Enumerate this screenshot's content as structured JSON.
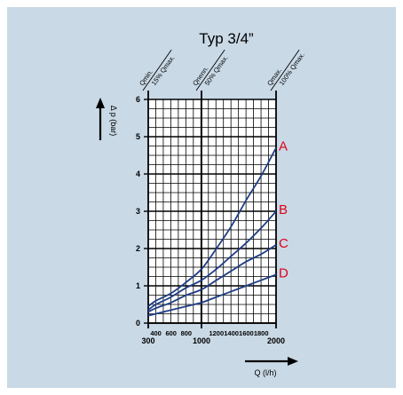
{
  "chart_data": {
    "type": "line",
    "title": "Typ 3/4”",
    "xlabel": "Q (l/h)",
    "ylabel": "Δ p (bar)",
    "xlim": [
      300,
      2000
    ],
    "ylim": [
      0,
      6
    ],
    "x_ticks_major": [
      "300",
      "1000",
      "2000"
    ],
    "x_ticks_minor": [
      "400",
      "600",
      "800",
      "1200",
      "1400",
      "1600",
      "1800"
    ],
    "y_ticks": [
      "0",
      "1",
      "2",
      "3",
      "4",
      "5",
      "6"
    ],
    "top_annotations": [
      {
        "line1": "Qmin.",
        "line2": "15% Qmax.",
        "x": 300
      },
      {
        "line1": "Qnenn.",
        "line2": "50% Qmax.",
        "x": 1000
      },
      {
        "line1": "Qmax.",
        "line2": "100% Qmax.",
        "x": 2000
      }
    ],
    "grid": true,
    "series": [
      {
        "name": "A",
        "x": [
          300,
          400,
          600,
          800,
          1000,
          1200,
          1400,
          1600,
          1800,
          2000
        ],
        "y": [
          0.45,
          0.6,
          0.8,
          1.1,
          1.45,
          2.0,
          2.6,
          3.3,
          3.95,
          4.7
        ]
      },
      {
        "name": "B",
        "x": [
          300,
          400,
          600,
          800,
          1000,
          1200,
          1400,
          1600,
          1800,
          2000
        ],
        "y": [
          0.35,
          0.5,
          0.7,
          0.95,
          1.15,
          1.45,
          1.8,
          2.15,
          2.55,
          3.0
        ]
      },
      {
        "name": "C",
        "x": [
          300,
          400,
          600,
          800,
          1000,
          1200,
          1400,
          1600,
          1800,
          2000
        ],
        "y": [
          0.3,
          0.4,
          0.55,
          0.75,
          0.9,
          1.15,
          1.4,
          1.65,
          1.85,
          2.1
        ]
      },
      {
        "name": "D",
        "x": [
          300,
          400,
          600,
          800,
          1000,
          1200,
          1400,
          1600,
          1800,
          2000
        ],
        "y": [
          0.2,
          0.25,
          0.35,
          0.45,
          0.55,
          0.7,
          0.85,
          1.0,
          1.15,
          1.3
        ]
      }
    ],
    "colors": {
      "curve": "#1f3d85",
      "letter": "#e0001b",
      "background": "#c9d9e6",
      "plot": "#ffffff",
      "grid": "#000000"
    }
  }
}
